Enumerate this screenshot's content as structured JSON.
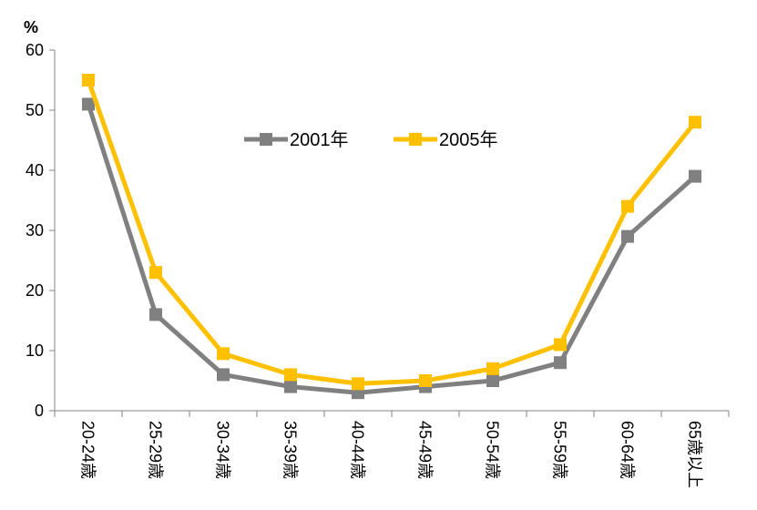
{
  "chart_data": {
    "type": "line",
    "y_unit_label": "%",
    "categories": [
      "20-24歳",
      "25-29歳",
      "30-34歳",
      "35-39歳",
      "40-44歳",
      "45-49歳",
      "50-54歳",
      "55-59歳",
      "60-64歳",
      "65歳以上"
    ],
    "ylim": [
      0,
      60
    ],
    "yticks": [
      0,
      10,
      20,
      30,
      40,
      50,
      60
    ],
    "grid": false,
    "legend_position": "top-center",
    "series": [
      {
        "name": "2001年",
        "color": "#808080",
        "values": [
          51,
          16,
          6,
          4,
          3,
          4,
          5,
          8,
          29,
          39
        ]
      },
      {
        "name": "2005年",
        "color": "#FFC000",
        "values": [
          55,
          23,
          9.5,
          6,
          4.5,
          5,
          7,
          11,
          34,
          48
        ]
      }
    ]
  }
}
